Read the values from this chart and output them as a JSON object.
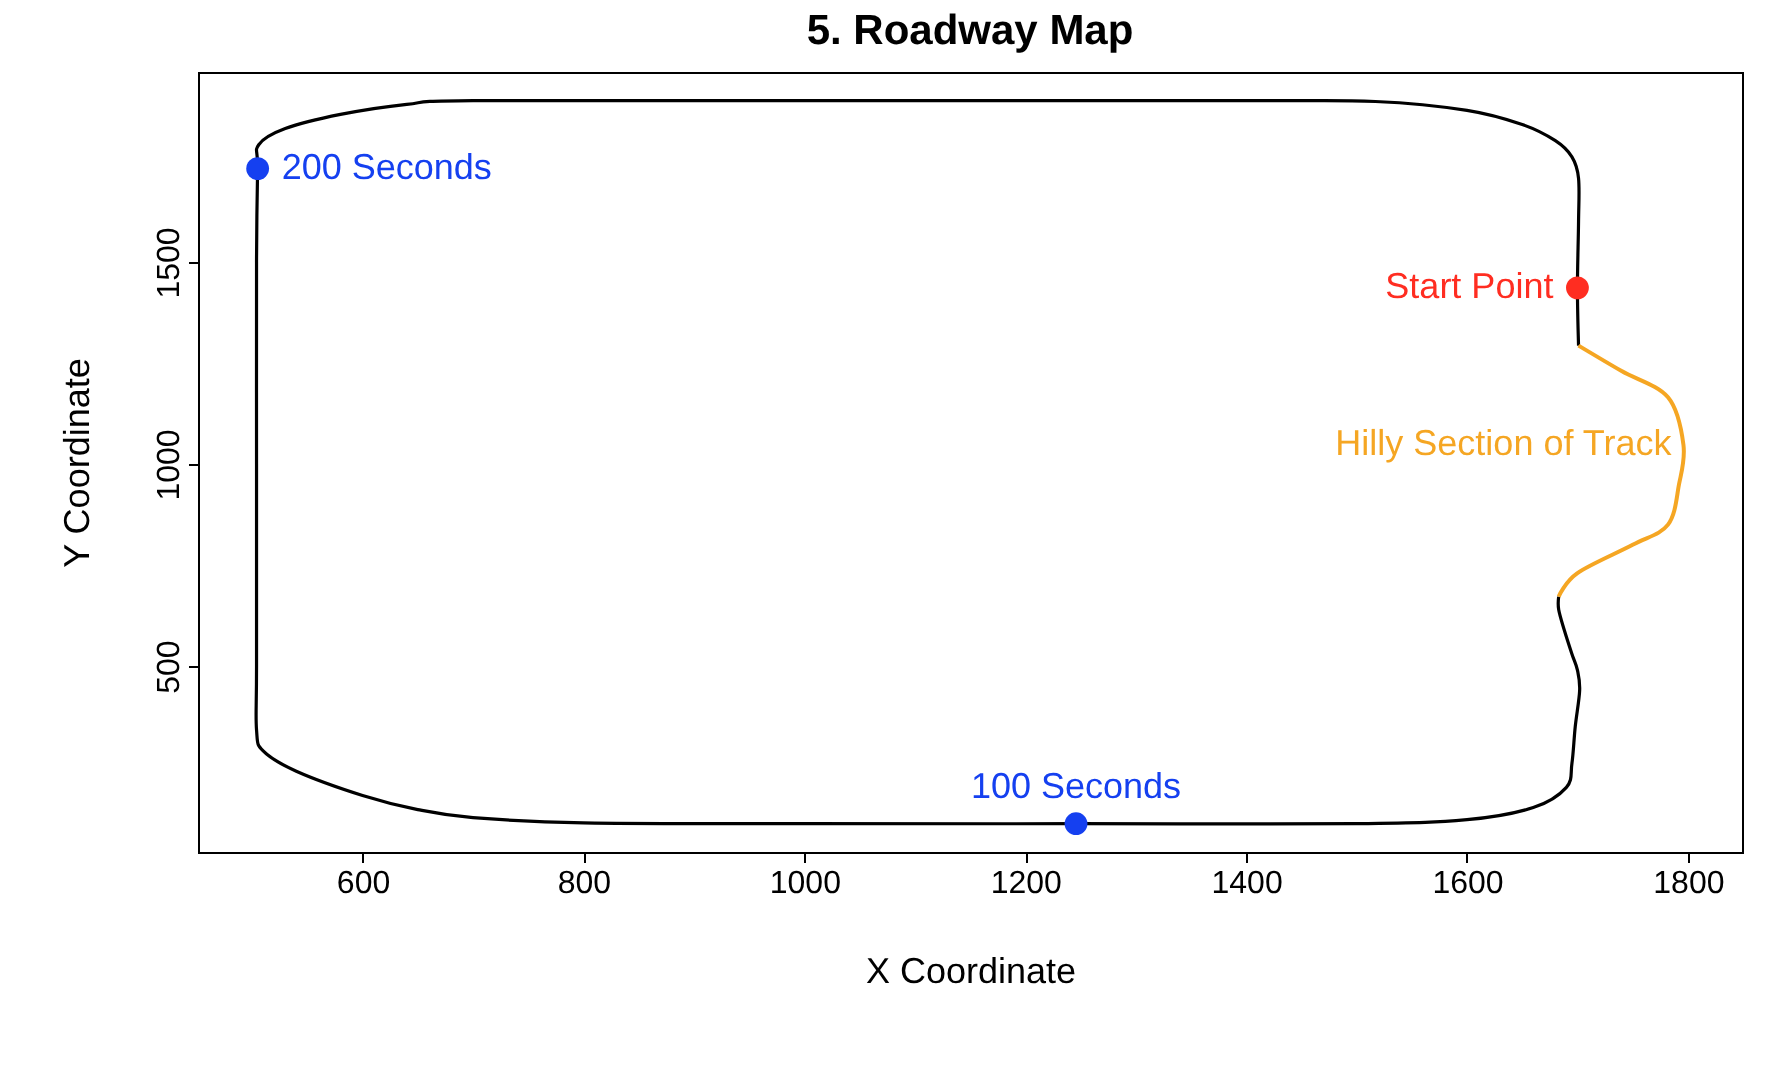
{
  "chart_data": {
    "type": "line",
    "title": "5. Roadway Map",
    "xlabel": "X Coordinate",
    "ylabel": "Y Coordinate",
    "xlim": [
      451,
      1849
    ],
    "ylim": [
      40,
      1970
    ],
    "xticks": [
      600,
      800,
      1000,
      1200,
      1400,
      1600,
      1800
    ],
    "yticks": [
      500,
      1000,
      1500
    ],
    "grid": false,
    "legend": false,
    "line_style": "solid",
    "marker": "none",
    "series": [
      {
        "color": "#000000",
        "x": [
          1701,
          1700,
          1701,
          1701,
          1695,
          1680,
          1650,
          1600,
          1517,
          1400,
          1000,
          700,
          640,
          580,
          530,
          506,
          505,
          504,
          504,
          504,
          504,
          510,
          540,
          600,
          650,
          700,
          800,
          1000,
          1246,
          1500,
          1600,
          1660,
          1690,
          1695,
          1698,
          1702,
          1700,
          1695,
          1688,
          1683,
          1683
        ],
        "values": [
          1293,
          1436,
          1600,
          1707,
          1760,
          1800,
          1840,
          1875,
          1897,
          1899,
          1899,
          1899,
          1890,
          1865,
          1830,
          1790,
          1731,
          1500,
          1000,
          500,
          342,
          290,
          240,
          180,
          145,
          125,
          112,
          110,
          110,
          110,
          120,
          150,
          200,
          259,
          350,
          440,
          490,
          530,
          590,
          640,
          672
        ]
      },
      {
        "color": "#f5a623",
        "x": [
          1683,
          1700,
          1750,
          1782,
          1792,
          1796,
          1782,
          1740,
          1701
        ],
        "values": [
          672,
          730,
          800,
          850,
          950,
          1047,
          1165,
          1230,
          1293
        ]
      },
      {
        "type": "scatter",
        "marker": "circle",
        "x": [
          1700,
          1246,
          505
        ],
        "values": [
          1436,
          110,
          1731
        ],
        "colors": [
          "#ff2d21",
          "#1540f0",
          "#1540f0"
        ]
      }
    ],
    "annotations": [
      {
        "text": "Start Point",
        "x": 1700,
        "y": 1436
      },
      {
        "text": "100 Seconds",
        "x": 1246,
        "y": 110
      },
      {
        "text": "200 Seconds",
        "x": 505,
        "y": 1731
      },
      {
        "text": "Hilly Section of Track",
        "x": 1796,
        "y": 1047
      }
    ]
  }
}
